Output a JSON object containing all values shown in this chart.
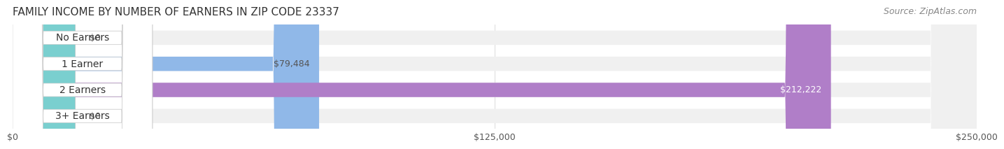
{
  "title": "FAMILY INCOME BY NUMBER OF EARNERS IN ZIP CODE 23337",
  "source": "Source: ZipAtlas.com",
  "categories": [
    "No Earners",
    "1 Earner",
    "2 Earners",
    "3+ Earners"
  ],
  "values": [
    0,
    79484,
    212222,
    0
  ],
  "bar_colors": [
    "#f4a0a0",
    "#90b8e8",
    "#b07ec8",
    "#7acfcf"
  ],
  "bar_bg_color": "#f0f0f0",
  "value_labels": [
    "$0",
    "$79,484",
    "$212,222",
    "$0"
  ],
  "value_label_colors": [
    "#555555",
    "#555555",
    "#ffffff",
    "#555555"
  ],
  "xlim": [
    0,
    250000
  ],
  "xtick_labels": [
    "$0",
    "$125,000",
    "$250,000"
  ],
  "xtick_values": [
    0,
    125000,
    250000
  ],
  "title_fontsize": 11,
  "source_fontsize": 9,
  "label_fontsize": 10,
  "value_fontsize": 9,
  "bar_height": 0.55,
  "background_color": "#ffffff"
}
